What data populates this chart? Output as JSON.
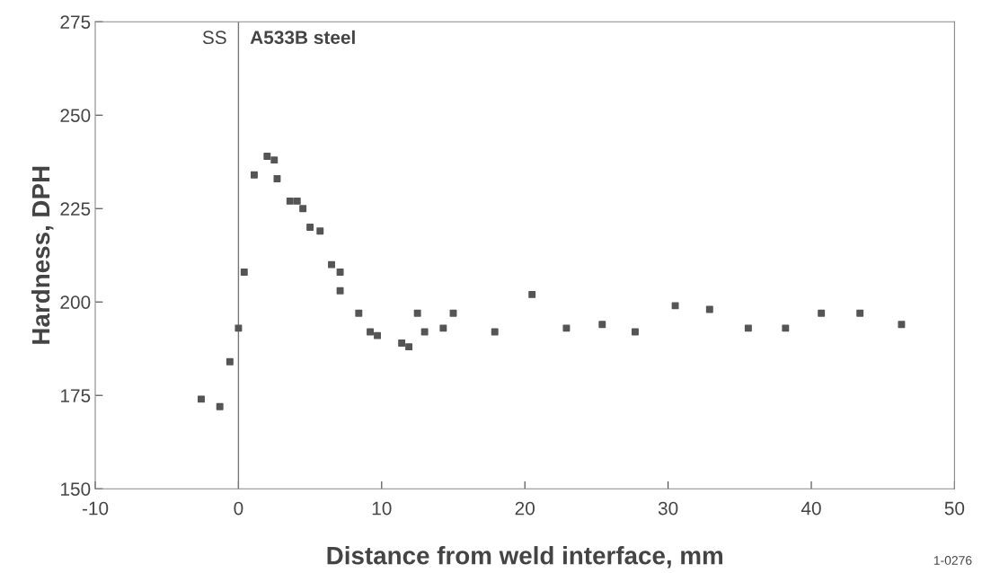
{
  "chart_data": {
    "type": "scatter",
    "xlabel": "Distance from weld interface, mm",
    "ylabel": "Hardness, DPH",
    "x": [
      -2.6,
      -1.3,
      -0.6,
      0,
      0.4,
      1.1,
      2.0,
      2.5,
      2.7,
      3.6,
      4.1,
      4.5,
      5.0,
      5.7,
      6.5,
      7.1,
      7.1,
      8.4,
      9.2,
      9.7,
      11.4,
      11.9,
      12.5,
      13.0,
      14.3,
      15.0,
      17.9,
      20.5,
      22.9,
      25.4,
      27.7,
      30.5,
      32.9,
      35.6,
      38.2,
      40.7,
      43.4,
      46.3
    ],
    "series": [
      {
        "color": "#555555",
        "values": [
          174,
          172,
          184,
          193,
          208,
          234,
          239,
          238,
          233,
          227,
          227,
          225,
          220,
          219,
          210,
          208,
          203,
          197,
          192,
          191,
          189,
          188,
          197,
          192,
          193,
          197,
          192,
          202,
          193,
          194,
          192,
          199,
          198,
          193,
          193,
          197,
          197,
          194
        ]
      }
    ],
    "xlim": [
      -10,
      50
    ],
    "xticks": [
      -10,
      0,
      10,
      20,
      30,
      40,
      50
    ],
    "ylim": [
      150,
      275
    ],
    "yticks": [
      150,
      175,
      200,
      225,
      250,
      275
    ],
    "ref_lines": [
      {
        "axis": "x",
        "value": 0,
        "color": "#777777"
      }
    ],
    "annotations": [
      "SS",
      "A533B steel",
      "1-0276"
    ],
    "marker": "square",
    "grid": false,
    "legend": false
  }
}
